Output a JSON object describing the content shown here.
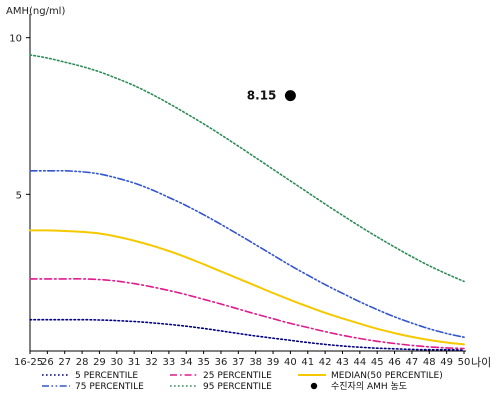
{
  "chart_data": {
    "type": "line",
    "ylabel": "AMH(ng/ml)",
    "xlabel": "나이",
    "categories": [
      "16-25",
      "26",
      "27",
      "28",
      "29",
      "30",
      "31",
      "32",
      "33",
      "34",
      "35",
      "36",
      "37",
      "38",
      "39",
      "40",
      "41",
      "42",
      "43",
      "44",
      "45",
      "46",
      "47",
      "48",
      "49",
      "50"
    ],
    "yticks": [
      5,
      10
    ],
    "ylim": [
      0,
      10.5
    ],
    "grid": false,
    "legend_position": "bottom",
    "series": [
      {
        "name": "5 PERCENTILE",
        "color": "#000080",
        "dash": "dot",
        "values": [
          1.0,
          1.0,
          1.0,
          1.0,
          0.99,
          0.97,
          0.94,
          0.9,
          0.85,
          0.79,
          0.72,
          0.64,
          0.56,
          0.48,
          0.41,
          0.34,
          0.27,
          0.21,
          0.16,
          0.12,
          0.09,
          0.07,
          0.05,
          0.04,
          0.04,
          0.03
        ]
      },
      {
        "name": "25 PERCENTILE",
        "color": "#e0198c",
        "dash": "dashdot",
        "values": [
          2.3,
          2.3,
          2.3,
          2.3,
          2.28,
          2.23,
          2.15,
          2.05,
          1.93,
          1.8,
          1.65,
          1.5,
          1.34,
          1.18,
          1.03,
          0.88,
          0.75,
          0.62,
          0.5,
          0.4,
          0.31,
          0.24,
          0.18,
          0.13,
          0.1,
          0.08
        ]
      },
      {
        "name": "MEDIAN(50 PERCENTILE)",
        "color": "#f5c800",
        "dash": "solid",
        "values": [
          3.85,
          3.85,
          3.83,
          3.8,
          3.75,
          3.65,
          3.52,
          3.37,
          3.19,
          2.99,
          2.77,
          2.54,
          2.31,
          2.08,
          1.85,
          1.63,
          1.42,
          1.22,
          1.04,
          0.87,
          0.71,
          0.57,
          0.45,
          0.35,
          0.27,
          0.21
        ]
      },
      {
        "name": "75 PERCENTILE",
        "color": "#3355cc",
        "dash": "dashdotdot",
        "values": [
          5.75,
          5.75,
          5.75,
          5.72,
          5.65,
          5.52,
          5.36,
          5.15,
          4.9,
          4.64,
          4.35,
          4.04,
          3.72,
          3.39,
          3.06,
          2.73,
          2.42,
          2.12,
          1.84,
          1.57,
          1.32,
          1.09,
          0.89,
          0.71,
          0.56,
          0.44
        ]
      },
      {
        "name": "95 PERCENTILE",
        "color": "#2e8b57",
        "dash": "dot",
        "values": [
          9.45,
          9.35,
          9.22,
          9.08,
          8.91,
          8.7,
          8.47,
          8.2,
          7.9,
          7.58,
          7.25,
          6.9,
          6.54,
          6.17,
          5.8,
          5.43,
          5.06,
          4.69,
          4.33,
          3.98,
          3.64,
          3.32,
          3.01,
          2.72,
          2.46,
          2.22
        ]
      }
    ],
    "marker": {
      "name": "수진자의 AMH 농도",
      "label": "8.15",
      "x": "40",
      "y": 8.15,
      "color": "#000000"
    }
  }
}
